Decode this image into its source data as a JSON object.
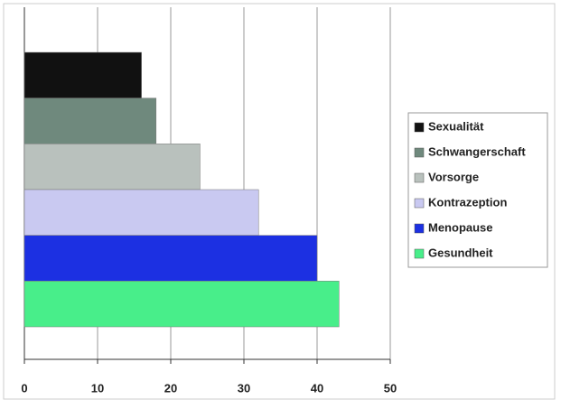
{
  "chart_data": {
    "type": "bar",
    "orientation": "horizontal",
    "series": [
      {
        "name": "Sexualität",
        "color": "#111111",
        "values": [
          16
        ]
      },
      {
        "name": "Schwangerschaft",
        "color": "#6f897d",
        "values": [
          18
        ]
      },
      {
        "name": "Vorsorge",
        "color": "#b9c1bd",
        "values": [
          24
        ]
      },
      {
        "name": "Kontrazeption",
        "color": "#c9c9f1",
        "values": [
          32
        ]
      },
      {
        "name": "Menopause",
        "color": "#1c30e2",
        "values": [
          40
        ]
      },
      {
        "name": "Gesundheit",
        "color": "#48ee8a",
        "values": [
          43
        ]
      }
    ],
    "xlim": [
      0,
      50
    ],
    "xticks": [
      0,
      10,
      20,
      30,
      40,
      50
    ],
    "grid": true,
    "legend": "right"
  }
}
